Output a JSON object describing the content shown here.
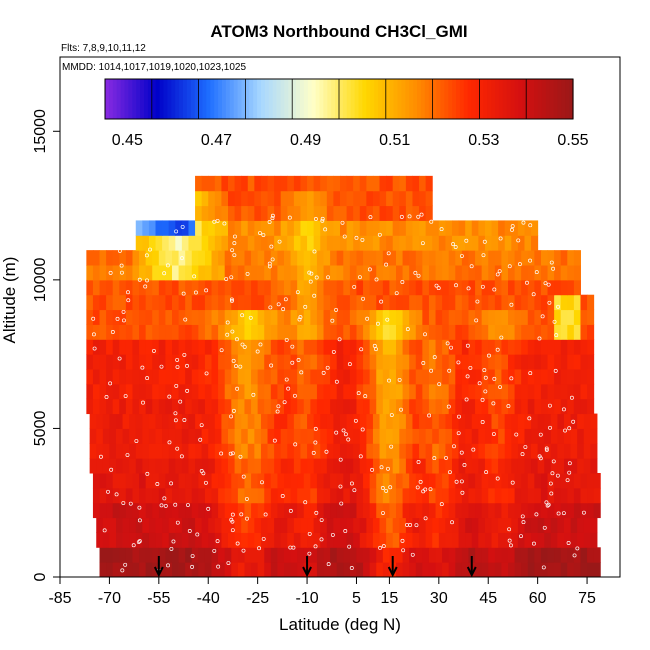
{
  "chart_data": {
    "type": "heatmap",
    "title": "ATOM3 Northbound CH3Cl_GMI",
    "subtitle_flights": "Flts: 7,8,9,10,11,12",
    "subtitle_dates": "MMDD: 1014,1017,1019,1020,1023,1025",
    "xlabel": "Latitude (deg N)",
    "ylabel": "Altitude (m)",
    "xlim": [
      -85,
      85
    ],
    "ylim": [
      0,
      17500
    ],
    "xticks": [
      "-85",
      "-70",
      "-55",
      "-40",
      "-25",
      "-10",
      "5",
      "15",
      "30",
      "45",
      "60",
      "75"
    ],
    "yticks": [
      "0",
      "5000",
      "10000",
      "15000"
    ],
    "colorbar": {
      "min": 0.445,
      "max": 0.55,
      "ticks": [
        "0.45",
        "0.47",
        "0.49",
        "0.51",
        "0.53",
        "0.55"
      ],
      "colors": [
        "#8a2be2",
        "#0000c8",
        "#1e6eff",
        "#a8d8ff",
        "#ffffc8",
        "#ffd700",
        "#ff8c00",
        "#ff2800",
        "#d41010",
        "#9a1818"
      ]
    },
    "flight_markers_lat": [
      -55,
      -10,
      16,
      40
    ],
    "concentration_field": [
      {
        "alt": 500,
        "lat_range": [
          -73,
          78
        ],
        "value": 0.548
      },
      {
        "alt": 1500,
        "lat_range": [
          -74,
          78
        ],
        "value": 0.54
      },
      {
        "alt": 3000,
        "lat_range": [
          -75,
          78
        ],
        "value": 0.535
      },
      {
        "alt": 5000,
        "lat_range": [
          -76,
          78
        ],
        "value": 0.532
      },
      {
        "alt": 7000,
        "lat_range": [
          -77,
          77
        ],
        "value": 0.53
      },
      {
        "alt": 9000,
        "lat_range": [
          -77,
          76
        ],
        "value": 0.522
      },
      {
        "alt": 10500,
        "lat_range": [
          -77,
          72
        ],
        "value": 0.518
      },
      {
        "alt": 11500,
        "lat_range": [
          -62,
          60
        ],
        "value": 0.515
      },
      {
        "alt": 12500,
        "lat_range": [
          -44,
          28
        ],
        "value": 0.522
      }
    ]
  }
}
